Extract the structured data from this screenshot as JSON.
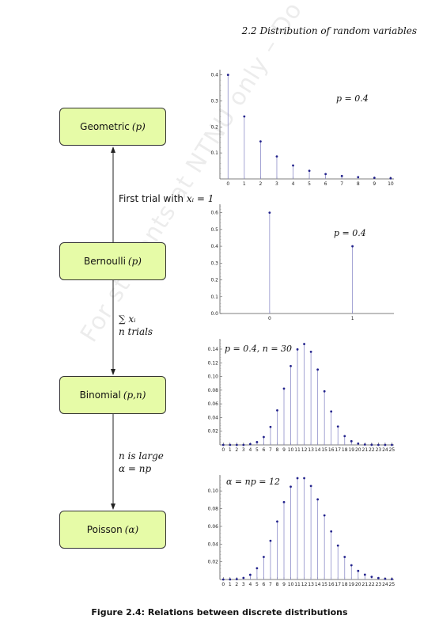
{
  "header": "2.2  Distribution of random variables",
  "watermark": "For students at NTNU only – Do not distribute – © NTNU",
  "caption": "Figure 2.4:  Relations between discrete distributions",
  "boxes": {
    "geometric": {
      "name": "Geometric",
      "param": "(p)"
    },
    "bernoulli": {
      "name": "Bernoulli",
      "param": "(p)"
    },
    "binomial": {
      "name": "Binomial",
      "param": "(p,n)"
    },
    "poisson": {
      "name": "Poisson",
      "param": "(α)"
    }
  },
  "edges": {
    "geo_bern": {
      "text": "First trial with ",
      "math": "xᵢ = 1"
    },
    "bern_bin": {
      "math": "∑ xᵢ",
      "text": "n trials"
    },
    "bin_poi": {
      "line1": "n is large",
      "line2": "α = np"
    }
  },
  "chart_data": [
    {
      "type": "stem",
      "annotation": "p = 0.4",
      "x": [
        0,
        1,
        2,
        3,
        4,
        5,
        6,
        7,
        8,
        9,
        10
      ],
      "y": [
        0.4,
        0.24,
        0.144,
        0.0864,
        0.0518,
        0.0311,
        0.0187,
        0.0112,
        0.0067,
        0.004,
        0.0024
      ],
      "xlim": [
        -0.5,
        10.2
      ],
      "ylim": [
        0,
        0.42
      ],
      "xticks": [
        0,
        1,
        2,
        3,
        4,
        5,
        6,
        7,
        8,
        9,
        10
      ],
      "yticks": [
        0.1,
        0.2,
        0.3,
        0.4
      ],
      "ytick_labels": [
        "0.1",
        "0.2",
        "0.3",
        "0.4"
      ]
    },
    {
      "type": "stem",
      "annotation": "p = 0.4",
      "x": [
        0,
        1
      ],
      "y": [
        0.6,
        0.4
      ],
      "xlim": [
        -0.6,
        1.5
      ],
      "ylim": [
        0,
        0.65
      ],
      "xticks": [
        0,
        1
      ],
      "yticks": [
        0,
        0.1,
        0.2,
        0.3,
        0.4,
        0.5,
        0.6
      ],
      "ytick_labels": [
        "0.0",
        "0.1",
        "0.2",
        "0.3",
        "0.4",
        "0.5",
        "0.6"
      ]
    },
    {
      "type": "stem",
      "annotation": "p = 0.4, n = 30",
      "x": [
        0,
        1,
        2,
        3,
        4,
        5,
        6,
        7,
        8,
        9,
        10,
        11,
        12,
        13,
        14,
        15,
        16,
        17,
        18,
        19,
        20,
        21,
        22,
        23,
        24,
        25
      ],
      "y": [
        0,
        0,
        0,
        0,
        0.0012,
        0.0041,
        0.0115,
        0.0263,
        0.0505,
        0.0823,
        0.1152,
        0.1396,
        0.1474,
        0.136,
        0.1101,
        0.0783,
        0.0489,
        0.0269,
        0.0129,
        0.0054,
        0.002,
        0.0006,
        0.0002,
        0,
        0,
        0
      ],
      "xlim": [
        -0.5,
        25.3
      ],
      "ylim": [
        0,
        0.155
      ],
      "xticks": [
        0,
        1,
        2,
        3,
        4,
        5,
        6,
        7,
        8,
        9,
        10,
        11,
        12,
        13,
        14,
        15,
        16,
        17,
        18,
        19,
        20,
        21,
        22,
        23,
        24,
        25
      ],
      "yticks": [
        0.02,
        0.04,
        0.06,
        0.08,
        0.1,
        0.12,
        0.14
      ],
      "ytick_labels": [
        "0.02",
        "0.04",
        "0.06",
        "0.08",
        "0.10",
        "0.12",
        "0.14"
      ]
    },
    {
      "type": "stem",
      "annotation": "α = np = 12",
      "x": [
        0,
        1,
        2,
        3,
        4,
        5,
        6,
        7,
        8,
        9,
        10,
        11,
        12,
        13,
        14,
        15,
        16,
        17,
        18,
        19,
        20,
        21,
        22,
        23,
        24,
        25
      ],
      "y": [
        0,
        0.0001,
        0.0004,
        0.0018,
        0.0053,
        0.0127,
        0.0255,
        0.0437,
        0.0655,
        0.0874,
        0.1048,
        0.1144,
        0.1144,
        0.1056,
        0.0905,
        0.0724,
        0.0543,
        0.0383,
        0.0255,
        0.0161,
        0.0097,
        0.0055,
        0.003,
        0.0016,
        0.0008,
        0.0004
      ],
      "xlim": [
        -0.5,
        25.3
      ],
      "ylim": [
        0,
        0.118
      ],
      "xticks": [
        0,
        1,
        2,
        3,
        4,
        5,
        6,
        7,
        8,
        9,
        10,
        11,
        12,
        13,
        14,
        15,
        16,
        17,
        18,
        19,
        20,
        21,
        22,
        23,
        24,
        25
      ],
      "yticks": [
        0.02,
        0.04,
        0.06,
        0.08,
        0.1
      ],
      "ytick_labels": [
        "0.02",
        "0.04",
        "0.06",
        "0.08",
        "0.10"
      ]
    }
  ]
}
